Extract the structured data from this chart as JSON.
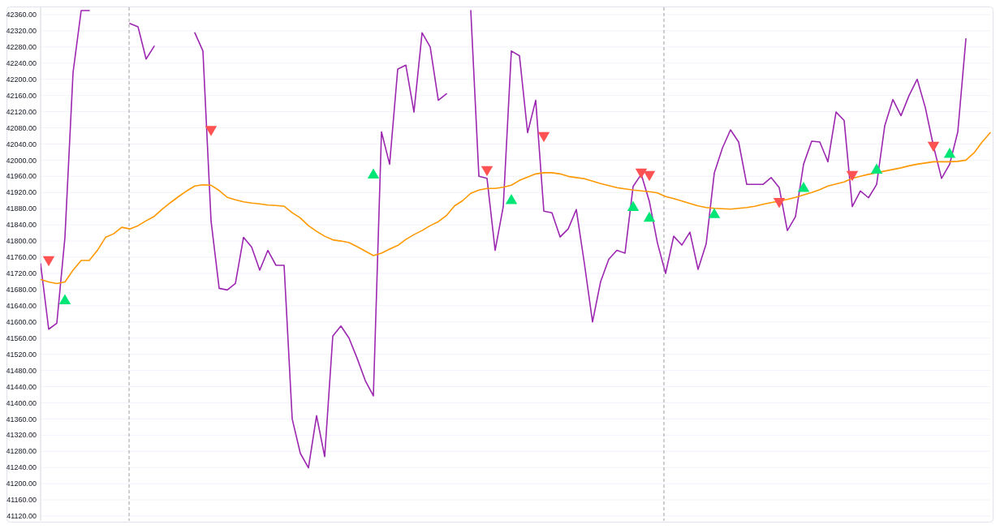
{
  "chart_data": {
    "type": "line",
    "categories": [
      null,
      null,
      null,
      null,
      null,
      null,
      null,
      null,
      null,
      null,
      null,
      null,
      null,
      null,
      null,
      null,
      null,
      null,
      null,
      null,
      null,
      null,
      null,
      null,
      null,
      null,
      null,
      null,
      null,
      null,
      null,
      null,
      null,
      null,
      null,
      null,
      null,
      null,
      null,
      null,
      null,
      null,
      null,
      null,
      null,
      null,
      null,
      null,
      null,
      null,
      null,
      null,
      null,
      null,
      null,
      null,
      null,
      null,
      null,
      null,
      null,
      null,
      null,
      null,
      null,
      null,
      null,
      null,
      null,
      null,
      null,
      null,
      null,
      null,
      null,
      null,
      null,
      null,
      null,
      null,
      null,
      null,
      null,
      null,
      null,
      null,
      null,
      null,
      null,
      null,
      null,
      null,
      null,
      null,
      null,
      null,
      null,
      null,
      null,
      null,
      null,
      null,
      null,
      null,
      null,
      null,
      null,
      null,
      null,
      null,
      null,
      null,
      null,
      null,
      null,
      null,
      null,
      null
    ],
    "ylim": [
      41108,
      42378
    ],
    "yticks": [
      {
        "value": 41120,
        "label": "41120.00"
      },
      {
        "value": 41160,
        "label": "41160.00"
      },
      {
        "value": 41200,
        "label": "41200.00"
      },
      {
        "value": 41240,
        "label": "41240.00"
      },
      {
        "value": 41280,
        "label": "41280.00"
      },
      {
        "value": 41320,
        "label": "41320.00"
      },
      {
        "value": 41360,
        "label": "41360.00"
      },
      {
        "value": 41400,
        "label": "41400.00"
      },
      {
        "value": 41440,
        "label": "41440.00"
      },
      {
        "value": 41480,
        "label": "41480.00"
      },
      {
        "value": 41520,
        "label": "41520.00"
      },
      {
        "value": 41560,
        "label": "41560.00"
      },
      {
        "value": 41600,
        "label": "41600.00"
      },
      {
        "value": 41640,
        "label": "41640.00"
      },
      {
        "value": 41680,
        "label": "41680.00"
      },
      {
        "value": 41720,
        "label": "41720.00"
      },
      {
        "value": 41760,
        "label": "41760.00"
      },
      {
        "value": 41800,
        "label": "41800.00"
      },
      {
        "value": 41840,
        "label": "41840.00"
      },
      {
        "value": 41880,
        "label": "41880.00"
      },
      {
        "value": 41920,
        "label": "41920.00"
      },
      {
        "value": 41960,
        "label": "41960.00"
      },
      {
        "value": 42000,
        "label": "42000.00"
      },
      {
        "value": 42040,
        "label": "42040.00"
      },
      {
        "value": 42080,
        "label": "42080.00"
      },
      {
        "value": 42120,
        "label": "42120.00"
      },
      {
        "value": 42160,
        "label": "42160.00"
      },
      {
        "value": 42200,
        "label": "42200.00"
      },
      {
        "value": 42240,
        "label": "42240.00"
      },
      {
        "value": 42280,
        "label": "42280.00"
      },
      {
        "value": 42320,
        "label": "42320.00"
      },
      {
        "value": 42360,
        "label": "42360.00"
      }
    ],
    "grid": "y",
    "series": [
      {
        "color": "#9c27b0",
        "values": [
          41744,
          41582,
          41597,
          41809,
          42217,
          42370,
          42370,
          null,
          null,
          null,
          null,
          42338,
          42330,
          42250,
          42282,
          null,
          null,
          null,
          null,
          42315,
          42270,
          41850,
          41683,
          41679,
          41695,
          41809,
          41785,
          41728,
          41777,
          41740,
          41740,
          41360,
          41275,
          41239,
          41368,
          41267,
          41565,
          41590,
          41560,
          41510,
          41455,
          41417,
          42070,
          41990,
          42225,
          42235,
          42119,
          42315,
          42280,
          42148,
          42164,
          null,
          null,
          42370,
          41960,
          41955,
          41777,
          41885,
          42270,
          42258,
          42068,
          42148,
          41874,
          41870,
          41810,
          41830,
          41878,
          41744,
          41600,
          41700,
          41755,
          41777,
          41770,
          41935,
          41965,
          41898,
          41795,
          41720,
          41812,
          41790,
          41822,
          41730,
          41793,
          41968,
          42030,
          42075,
          42045,
          41940,
          41940,
          41940,
          41957,
          41932,
          41826,
          41860,
          41990,
          42047,
          42045,
          41996,
          42119,
          42098,
          41885,
          41924,
          41907,
          41940,
          42085,
          42150,
          42110,
          42160,
          42200,
          42130,
          42035,
          41955,
          41990,
          42070,
          42300,
          null,
          null,
          null
        ]
      },
      {
        "color": "#ff9800",
        "values": [
          41705,
          41699,
          41695,
          41699,
          41728,
          41752,
          41752,
          41777,
          41809,
          41818,
          41834,
          41830,
          41838,
          41850,
          41861,
          41879,
          41895,
          41910,
          41924,
          41936,
          41939,
          41938,
          41925,
          41908,
          41902,
          41897,
          41894,
          41892,
          41889,
          41888,
          41886,
          41870,
          41857,
          41838,
          41824,
          41812,
          41803,
          41800,
          41796,
          41786,
          41775,
          41764,
          41770,
          41780,
          41789,
          41804,
          41816,
          41826,
          41838,
          41848,
          41863,
          41887,
          41900,
          41918,
          41926,
          41930,
          41930,
          41933,
          41938,
          41950,
          41958,
          41966,
          41969,
          41969,
          41966,
          41960,
          41957,
          41954,
          41948,
          41942,
          41937,
          41932,
          41929,
          41926,
          41924,
          41922,
          41919,
          41910,
          41905,
          41899,
          41893,
          41887,
          41883,
          41881,
          41880,
          41879,
          41881,
          41883,
          41886,
          41891,
          41895,
          41899,
          41903,
          41908,
          41914,
          41920,
          41927,
          41936,
          41941,
          41946,
          41955,
          41960,
          41965,
          41969,
          41973,
          41977,
          41981,
          41986,
          41990,
          41993,
          41996,
          41996,
          41996,
          41997,
          42000,
          42018,
          42045,
          42068
        ]
      },
      {
        "type": "scatter",
        "color": "#ff5252",
        "marker": "triangle-down",
        "values": [
          null,
          41754,
          null,
          null,
          null,
          null,
          null,
          null,
          null,
          null,
          null,
          null,
          null,
          null,
          null,
          null,
          null,
          null,
          null,
          null,
          null,
          42076,
          null,
          null,
          null,
          null,
          null,
          null,
          null,
          null,
          null,
          null,
          null,
          null,
          null,
          null,
          null,
          null,
          null,
          null,
          null,
          null,
          null,
          null,
          null,
          null,
          null,
          null,
          null,
          null,
          null,
          null,
          null,
          null,
          null,
          41977,
          null,
          null,
          null,
          null,
          null,
          null,
          42061,
          null,
          null,
          null,
          null,
          null,
          null,
          null,
          null,
          null,
          null,
          null,
          41971,
          41965,
          null,
          null,
          null,
          null,
          null,
          null,
          null,
          null,
          null,
          null,
          null,
          null,
          null,
          null,
          null,
          41898,
          null,
          null,
          null,
          null,
          null,
          null,
          null,
          null,
          41965,
          null,
          null,
          null,
          null,
          null,
          null,
          null,
          null,
          null,
          42037,
          null,
          null,
          null,
          null,
          null,
          null,
          null
        ]
      },
      {
        "type": "scatter",
        "color": "#00e676",
        "marker": "triangle",
        "values": [
          null,
          null,
          null,
          41652,
          null,
          null,
          null,
          null,
          null,
          null,
          null,
          null,
          null,
          null,
          null,
          null,
          null,
          null,
          null,
          null,
          null,
          null,
          null,
          null,
          null,
          null,
          null,
          null,
          null,
          null,
          null,
          null,
          null,
          null,
          null,
          null,
          null,
          null,
          null,
          null,
          null,
          41963,
          null,
          null,
          null,
          null,
          null,
          null,
          null,
          null,
          null,
          null,
          null,
          null,
          null,
          null,
          null,
          null,
          41900,
          null,
          null,
          null,
          null,
          null,
          null,
          null,
          null,
          null,
          null,
          null,
          null,
          null,
          null,
          41883,
          null,
          41856,
          null,
          null,
          null,
          null,
          null,
          null,
          null,
          41865,
          null,
          null,
          null,
          null,
          null,
          null,
          null,
          null,
          null,
          null,
          41930,
          null,
          null,
          null,
          null,
          null,
          null,
          null,
          null,
          41975,
          null,
          null,
          null,
          null,
          null,
          null,
          null,
          null,
          42014,
          null,
          null,
          null,
          null,
          null
        ]
      }
    ]
  }
}
